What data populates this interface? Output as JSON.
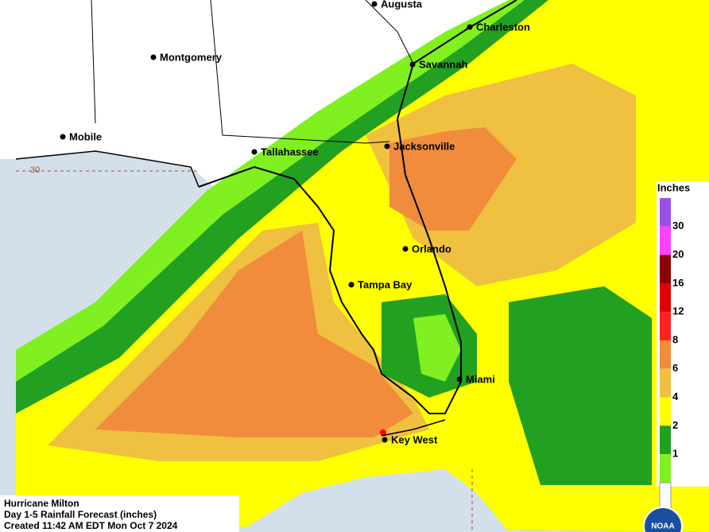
{
  "map": {
    "cities": [
      "Augusta",
      "Montgomery",
      "Charleston",
      "Savannah",
      "Mobile",
      "Tallahassee",
      "Jacksonville",
      "Orlando",
      "Tampa Bay",
      "Miami",
      "Key West"
    ],
    "latitude_label": "30",
    "legend": {
      "title": "Inches",
      "labels": [
        "30",
        "20",
        "16",
        "12",
        "8",
        "6",
        "4",
        "2",
        "1"
      ],
      "colors": [
        "#9a50e8",
        "#ff40ff",
        "#8b0000",
        "#dd0000",
        "#ff2020",
        "#f08c3c",
        "#f0c040",
        "#ffff00",
        "#22a022",
        "#80f020",
        "#ffffff"
      ]
    },
    "caption": [
      "Hurricane Milton",
      "Day 1-5 Rainfall Forecast (inches)",
      "Created 11:42 AM EDT Mon Oct 7 2024"
    ],
    "logo": "NOAA"
  }
}
